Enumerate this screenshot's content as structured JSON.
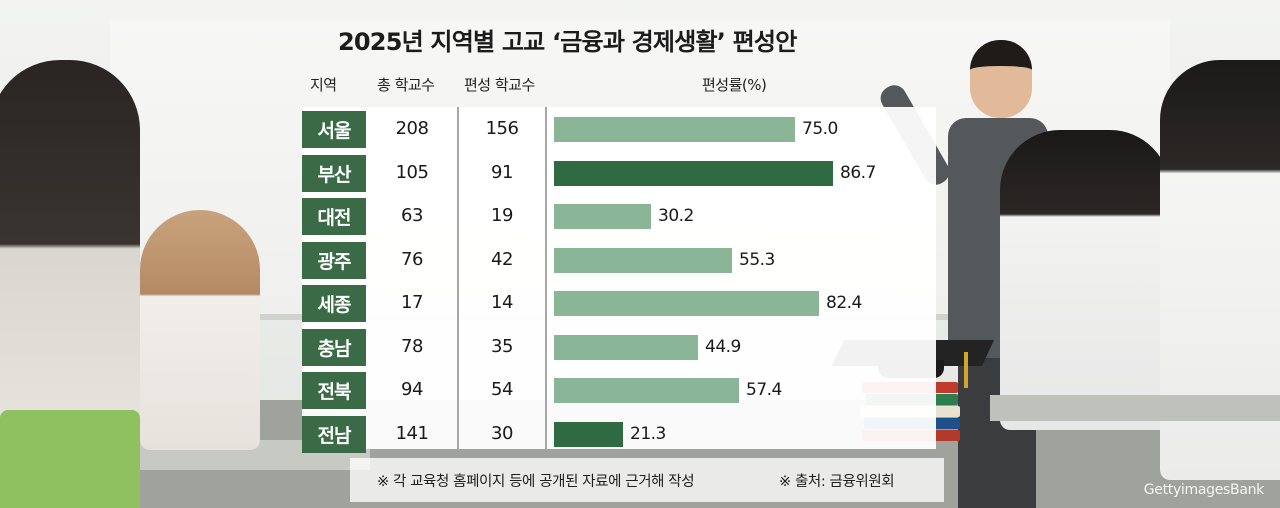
{
  "chart_data": {
    "type": "table",
    "title": "2025년 지역별 고교 ‘금융과 경제생활’ 편성안",
    "columns": [
      "지역",
      "총 학교수",
      "편성 학교수",
      "편성률(%)"
    ],
    "rows": [
      {
        "region": "서울",
        "total": "208",
        "assigned": "156",
        "rate": 75.0,
        "rate_label": "75.0",
        "highlight": false
      },
      {
        "region": "부산",
        "total": "105",
        "assigned": "91",
        "rate": 86.7,
        "rate_label": "86.7",
        "highlight": true
      },
      {
        "region": "대전",
        "total": "63",
        "assigned": "19",
        "rate": 30.2,
        "rate_label": "30.2",
        "highlight": false
      },
      {
        "region": "광주",
        "total": "76",
        "assigned": "42",
        "rate": 55.3,
        "rate_label": "55.3",
        "highlight": false
      },
      {
        "region": "세종",
        "total": "17",
        "assigned": "14",
        "rate": 82.4,
        "rate_label": "82.4",
        "highlight": false
      },
      {
        "region": "충남",
        "total": "78",
        "assigned": "35",
        "rate": 44.9,
        "rate_label": "44.9",
        "highlight": false
      },
      {
        "region": "전북",
        "total": "94",
        "assigned": "54",
        "rate": 57.4,
        "rate_label": "57.4",
        "highlight": false
      },
      {
        "region": "전남",
        "total": "141",
        "assigned": "30",
        "rate": 21.3,
        "rate_label": "21.3",
        "highlight": true
      }
    ],
    "ylim": [
      0,
      100
    ],
    "footnote": "※ 각 교육청 홈페이지 등에 공개된 자료에 근거해 작성",
    "source": "※ 출처: 금융위원회"
  },
  "watermark": "GettyimagesBank",
  "colors": {
    "region_bg": "#3a6b46",
    "bar_normal": "#8ab596",
    "bar_highlight": "#2f6a43"
  }
}
